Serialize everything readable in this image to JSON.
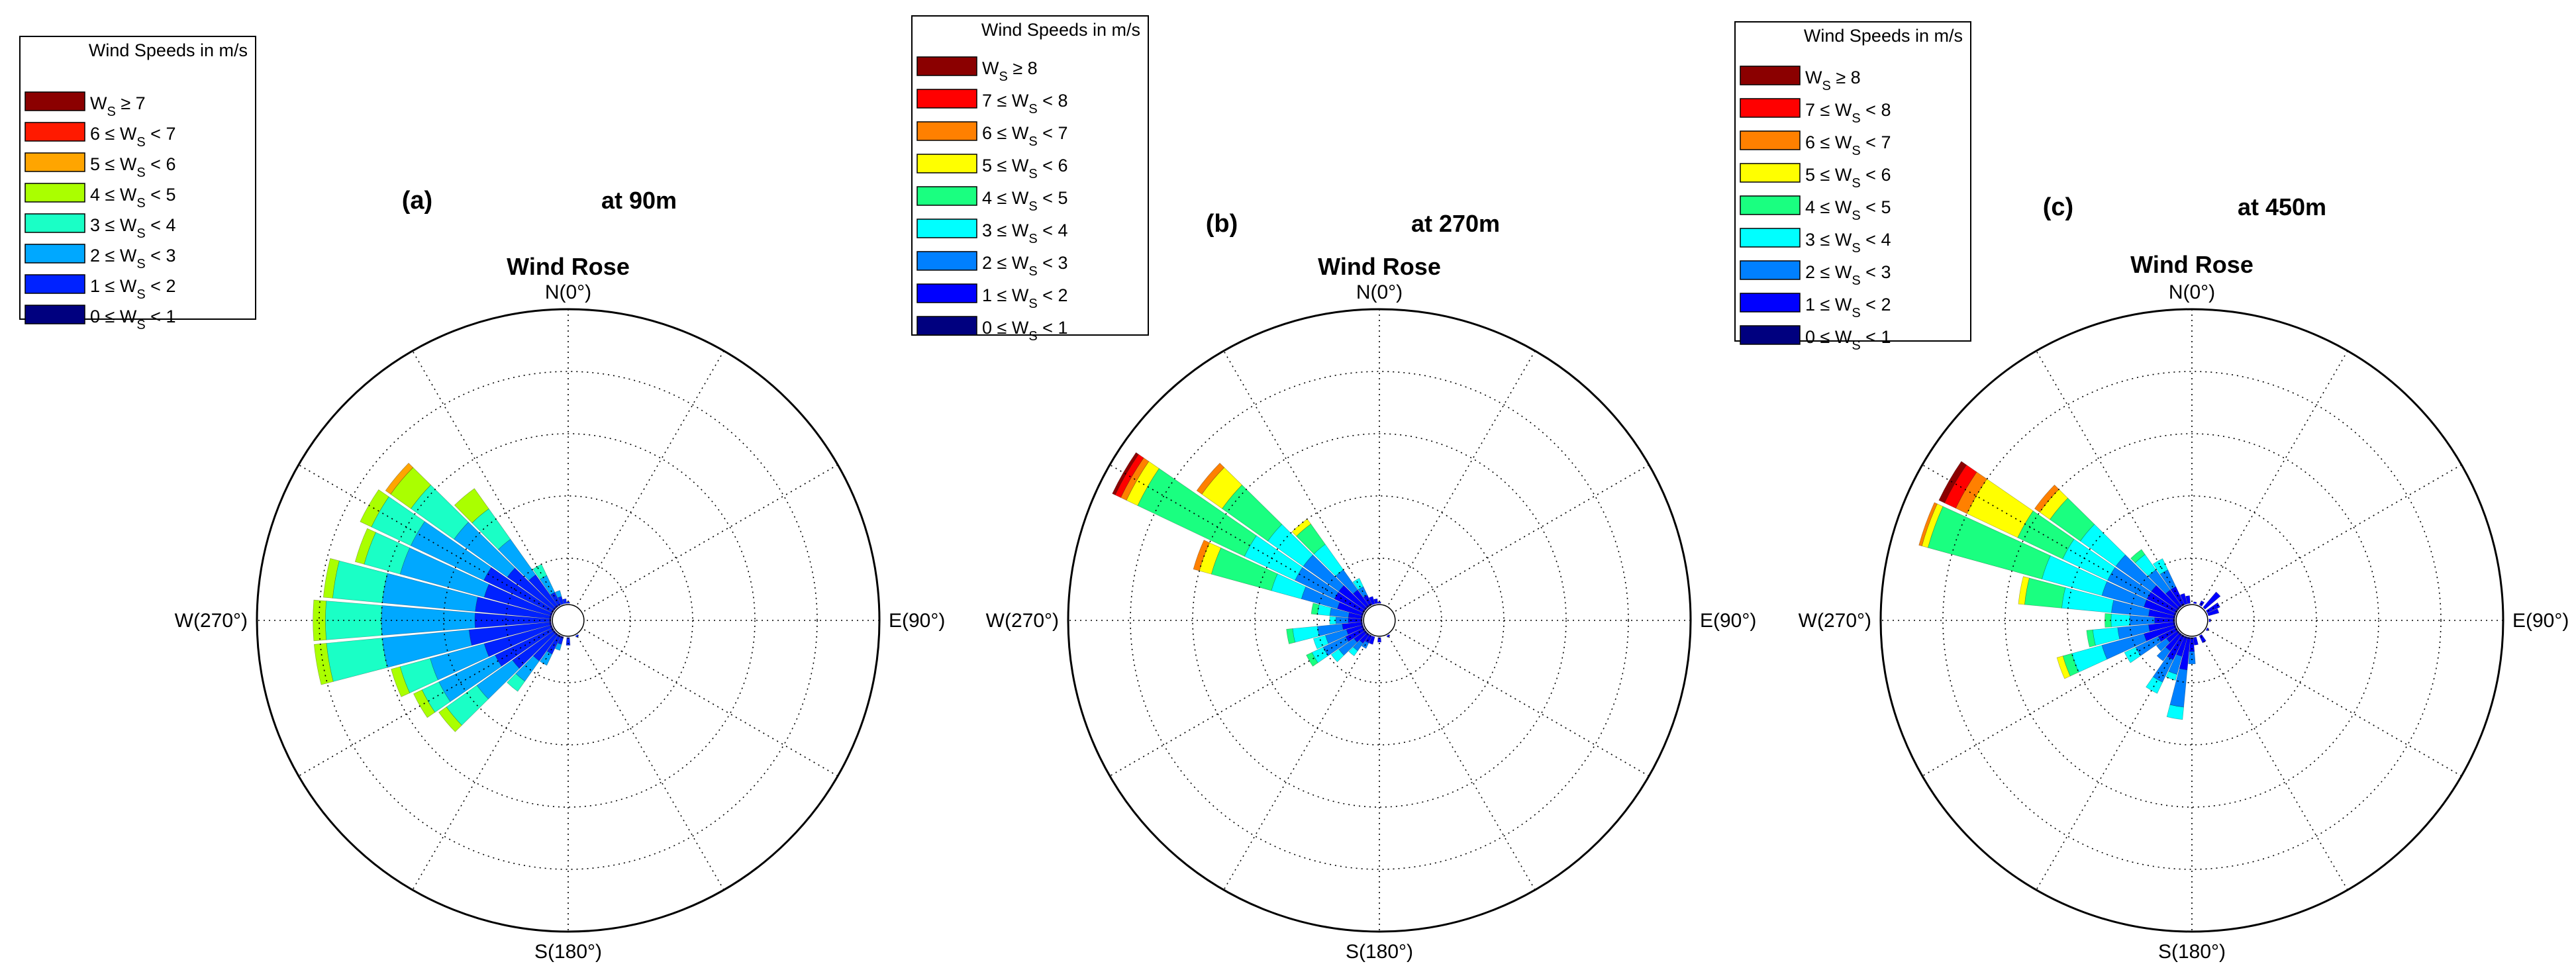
{
  "chart_data": [
    {
      "type": "wind-rose",
      "panel_label": "(a)",
      "height_label": "at 90m",
      "title": "Wind Rose",
      "direction_labels": {
        "n": "N(0°)",
        "e": "E(90°)",
        "s": "S(180°)",
        "w": "W(270°)"
      },
      "legend": {
        "title": "Wind Speeds in m/s",
        "entries": [
          {
            "pre": "",
            "post": "≥ 7",
            "color": "#8b0000"
          },
          {
            "pre": "6 ≤",
            "post": "< 7",
            "color": "#ff1a00"
          },
          {
            "pre": "5 ≤",
            "post": "< 6",
            "color": "#ffa500"
          },
          {
            "pre": "4 ≤",
            "post": "< 5",
            "color": "#aaff00"
          },
          {
            "pre": "3 ≤",
            "post": "< 4",
            "color": "#1affc6"
          },
          {
            "pre": "2 ≤",
            "post": "< 3",
            "color": "#00a8ff"
          },
          {
            "pre": "1 ≤",
            "post": "< 2",
            "color": "#0022ff"
          },
          {
            "pre": "0 ≤",
            "post": "< 1",
            "color": "#00007f"
          }
        ]
      },
      "max_radius": 10,
      "grid_rings": 5,
      "petals": [
        {
          "dir": 260,
          "cum": [
            0.6,
            3.2,
            6.0,
            7.8,
            8.2
          ]
        },
        {
          "dir": 270,
          "cum": [
            0.6,
            3.0,
            6.0,
            7.8,
            8.2
          ]
        },
        {
          "dir": 280,
          "cum": [
            0.6,
            3.0,
            6.0,
            7.6,
            7.9
          ]
        },
        {
          "dir": 290,
          "cum": [
            0.6,
            2.8,
            5.6,
            6.8,
            7.1
          ]
        },
        {
          "dir": 300,
          "cum": [
            0.6,
            3.0,
            5.6,
            7.0,
            7.4
          ]
        },
        {
          "dir": 310,
          "cum": [
            0.6,
            2.4,
            4.5,
            6.2,
            7.0,
            7.2
          ]
        },
        {
          "dir": 320,
          "cum": [
            0.6,
            1.8,
            3.2,
            4.4,
            5.2
          ]
        },
        {
          "dir": 330,
          "cum": [
            0.5,
            1.0,
            1.6,
            2.0
          ]
        },
        {
          "dir": 340,
          "cum": [
            0.5,
            0.8,
            1.0
          ]
        },
        {
          "dir": 350,
          "cum": [
            0.4,
            0.7
          ]
        },
        {
          "dir": 0,
          "cum": [
            0.4,
            0.6
          ]
        },
        {
          "dir": 10,
          "cum": [
            0.3,
            0.4
          ]
        },
        {
          "dir": 20,
          "cum": [
            0.3,
            0.5
          ]
        },
        {
          "dir": 30,
          "cum": [
            0.3
          ]
        },
        {
          "dir": 40,
          "cum": [
            0.3
          ]
        },
        {
          "dir": 60,
          "cum": [
            0.3
          ]
        },
        {
          "dir": 90,
          "cum": [
            0.4
          ]
        },
        {
          "dir": 120,
          "cum": [
            0.3,
            0.5
          ]
        },
        {
          "dir": 150,
          "cum": [
            0.4,
            0.6
          ]
        },
        {
          "dir": 180,
          "cum": [
            0.5,
            0.8
          ]
        },
        {
          "dir": 200,
          "cum": [
            0.6,
            0.8,
            1.0
          ]
        },
        {
          "dir": 210,
          "cum": [
            0.6,
            1.2,
            1.6
          ]
        },
        {
          "dir": 220,
          "cum": [
            0.6,
            1.6,
            2.4,
            2.8
          ]
        },
        {
          "dir": 230,
          "cum": [
            0.6,
            2.2,
            3.6,
            4.8,
            5.1
          ]
        },
        {
          "dir": 240,
          "cum": [
            0.6,
            2.6,
            4.6,
            5.2,
            5.5
          ]
        },
        {
          "dir": 250,
          "cum": [
            0.6,
            2.8,
            4.6,
            5.6,
            5.9
          ]
        }
      ]
    },
    {
      "type": "wind-rose",
      "panel_label": "(b)",
      "height_label": "at 270m",
      "title": "Wind Rose",
      "direction_labels": {
        "n": "N(0°)",
        "e": "E(90°)",
        "s": "S(180°)",
        "w": "W(270°)"
      },
      "legend": {
        "title": "Wind Speeds in m/s",
        "entries": [
          {
            "pre": "",
            "post": "≥ 8",
            "color": "#8b0000"
          },
          {
            "pre": "7 ≤",
            "post": "< 8",
            "color": "#ff0000"
          },
          {
            "pre": "6 ≤",
            "post": "< 7",
            "color": "#ff8000"
          },
          {
            "pre": "5 ≤",
            "post": "< 6",
            "color": "#ffff00"
          },
          {
            "pre": "4 ≤",
            "post": "< 5",
            "color": "#1aff80"
          },
          {
            "pre": "3 ≤",
            "post": "< 4",
            "color": "#00ffff"
          },
          {
            "pre": "2 ≤",
            "post": "< 3",
            "color": "#0080ff"
          },
          {
            "pre": "1 ≤",
            "post": "< 2",
            "color": "#0000ff"
          },
          {
            "pre": "0 ≤",
            "post": "< 1",
            "color": "#00007f"
          }
        ]
      },
      "max_radius": 10,
      "grid_rings": 5,
      "petals": [
        {
          "dir": 300,
          "cum": [
            0.6,
            1.6,
            3.0,
            4.8,
            8.6,
            9.0,
            9.2,
            9.4,
            9.5
          ]
        },
        {
          "dir": 310,
          "cum": [
            0.6,
            1.6,
            3.0,
            4.4,
            6.2,
            7.0,
            7.2
          ]
        },
        {
          "dir": 290,
          "cum": [
            0.6,
            1.4,
            2.6,
            3.6,
            5.6,
            6.0,
            6.2
          ]
        },
        {
          "dir": 320,
          "cum": [
            0.6,
            1.2,
            2.0,
            3.0,
            3.8,
            4.0
          ]
        },
        {
          "dir": 330,
          "cum": [
            0.6,
            0.9,
            1.2,
            1.5
          ]
        },
        {
          "dir": 280,
          "cum": [
            0.6,
            1.0,
            1.6,
            2.0,
            2.2
          ]
        },
        {
          "dir": 270,
          "cum": [
            0.6,
            1.0,
            1.4,
            1.6
          ]
        },
        {
          "dir": 260,
          "cum": [
            0.6,
            1.2,
            2.0,
            2.8,
            3.0
          ]
        },
        {
          "dir": 250,
          "cum": [
            0.6,
            1.1,
            1.8,
            2.2
          ]
        },
        {
          "dir": 240,
          "cum": [
            0.6,
            1.2,
            2.0,
            2.4,
            2.6
          ]
        },
        {
          "dir": 230,
          "cum": [
            0.6,
            1.0,
            1.6,
            1.9
          ]
        },
        {
          "dir": 220,
          "cum": [
            0.6,
            0.9,
            1.2,
            1.4
          ]
        },
        {
          "dir": 210,
          "cum": [
            0.5,
            0.8,
            1.0
          ]
        },
        {
          "dir": 340,
          "cum": [
            0.5,
            0.8
          ]
        },
        {
          "dir": 350,
          "cum": [
            0.5,
            0.7
          ]
        },
        {
          "dir": 0,
          "cum": [
            0.4,
            0.6
          ]
        },
        {
          "dir": 20,
          "cum": [
            0.3,
            0.4
          ]
        },
        {
          "dir": 60,
          "cum": [
            0.3
          ]
        },
        {
          "dir": 120,
          "cum": [
            0.3,
            0.4
          ]
        },
        {
          "dir": 150,
          "cum": [
            0.4,
            0.6
          ]
        },
        {
          "dir": 180,
          "cum": [
            0.4,
            0.7
          ]
        },
        {
          "dir": 200,
          "cum": [
            0.5,
            0.8
          ]
        }
      ]
    },
    {
      "type": "wind-rose",
      "panel_label": "(c)",
      "height_label": "at 450m",
      "title": "Wind Rose",
      "direction_labels": {
        "n": "N(0°)",
        "e": "E(90°)",
        "s": "S(180°)",
        "w": "W(270°)"
      },
      "legend": {
        "title": "Wind Speeds in m/s",
        "entries": [
          {
            "pre": "",
            "post": "≥ 8",
            "color": "#8b0000"
          },
          {
            "pre": "7 ≤",
            "post": "< 8",
            "color": "#ff0000"
          },
          {
            "pre": "6 ≤",
            "post": "< 7",
            "color": "#ff8000"
          },
          {
            "pre": "5 ≤",
            "post": "< 6",
            "color": "#ffff00"
          },
          {
            "pre": "4 ≤",
            "post": "< 5",
            "color": "#1aff80"
          },
          {
            "pre": "3 ≤",
            "post": "< 4",
            "color": "#00ffff"
          },
          {
            "pre": "2 ≤",
            "post": "< 3",
            "color": "#0080ff"
          },
          {
            "pre": "1 ≤",
            "post": "< 2",
            "color": "#0000ff"
          },
          {
            "pre": "0 ≤",
            "post": "< 1",
            "color": "#00007f"
          }
        ]
      },
      "max_radius": 10,
      "grid_rings": 5,
      "petals": [
        {
          "dir": 290,
          "cum": [
            0.6,
            1.6,
            3.0,
            5.0,
            8.8,
            9.0,
            9.1
          ]
        },
        {
          "dir": 300,
          "cum": [
            0.6,
            1.6,
            3.0,
            4.6,
            6.2,
            8.0,
            8.4,
            8.8,
            9.0
          ]
        },
        {
          "dir": 280,
          "cum": [
            0.6,
            1.4,
            2.6,
            4.2,
            5.4,
            5.6
          ]
        },
        {
          "dir": 310,
          "cum": [
            0.6,
            1.6,
            3.0,
            4.4,
            5.6,
            6.0,
            6.2
          ]
        },
        {
          "dir": 320,
          "cum": [
            0.6,
            1.2,
            2.0,
            2.6,
            2.8
          ]
        },
        {
          "dir": 330,
          "cum": [
            0.6,
            1.2,
            1.8,
            2.2
          ]
        },
        {
          "dir": 270,
          "cum": [
            0.6,
            1.2,
            2.0,
            2.6,
            2.8
          ]
        },
        {
          "dir": 260,
          "cum": [
            0.6,
            1.4,
            2.4,
            3.2,
            3.4
          ]
        },
        {
          "dir": 250,
          "cum": [
            0.6,
            1.6,
            3.0,
            4.0,
            4.3,
            4.5
          ]
        },
        {
          "dir": 240,
          "cum": [
            0.6,
            1.2,
            2.0,
            2.4
          ]
        },
        {
          "dir": 230,
          "cum": [
            0.6,
            1.0,
            1.4
          ]
        },
        {
          "dir": 220,
          "cum": [
            0.6,
            1.2,
            1.6
          ]
        },
        {
          "dir": 210,
          "cum": [
            0.6,
            1.4,
            2.2,
            2.6
          ]
        },
        {
          "dir": 200,
          "cum": [
            0.6,
            1.2,
            1.8,
            2.0
          ]
        },
        {
          "dir": 190,
          "cum": [
            0.6,
            1.6,
            2.8,
            3.2
          ]
        },
        {
          "dir": 180,
          "cum": [
            0.6,
            1.0,
            1.4
          ]
        },
        {
          "dir": 170,
          "cum": [
            0.5,
            0.8
          ]
        },
        {
          "dir": 150,
          "cum": [
            0.5,
            0.8
          ]
        },
        {
          "dir": 120,
          "cum": [
            0.4,
            0.6
          ]
        },
        {
          "dir": 90,
          "cum": [
            0.4,
            0.6
          ]
        },
        {
          "dir": 70,
          "cum": [
            0.5,
            0.9
          ]
        },
        {
          "dir": 60,
          "cum": [
            0.5,
            1.0
          ]
        },
        {
          "dir": 45,
          "cum": [
            0.5,
            1.2
          ]
        },
        {
          "dir": 30,
          "cum": [
            0.4,
            0.7
          ]
        },
        {
          "dir": 10,
          "cum": [
            0.4,
            0.6
          ]
        },
        {
          "dir": 350,
          "cum": [
            0.5,
            0.8
          ]
        },
        {
          "dir": 340,
          "cum": [
            0.5,
            0.9
          ]
        }
      ]
    }
  ]
}
